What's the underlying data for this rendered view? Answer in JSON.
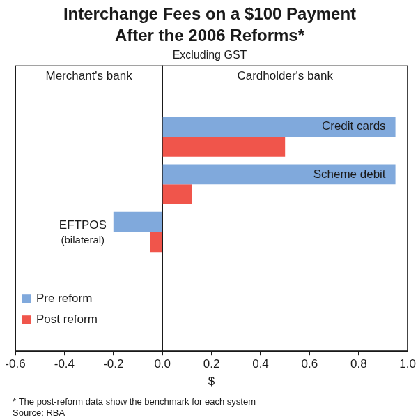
{
  "chart_data": {
    "type": "bar",
    "orientation": "horizontal",
    "title": [
      "Interchange Fees on a $100 Payment",
      "After the 2006 Reforms*"
    ],
    "subtitle": "Excluding GST",
    "annotations": [
      "Merchant's bank",
      "Cardholder's bank"
    ],
    "x_label": "$",
    "notes": [
      "* The post-reform data show the benchmark for each system",
      "Source: RBA"
    ],
    "categories": [
      null,
      "Credit cards",
      "Scheme debit",
      "EFTPOS (bilateral)",
      null,
      null
    ],
    "series": [
      {
        "name": "Pre reform",
        "color": "#80a9dc",
        "values": [
          null,
          0.95,
          0.95,
          -0.2,
          null,
          null
        ]
      },
      {
        "name": "Post reform",
        "color": "#f0554b",
        "values": [
          null,
          0.5,
          0.12,
          -0.05,
          null,
          null
        ]
      }
    ],
    "xlim": [
      -0.6,
      1.0
    ],
    "xticks": [
      -0.6,
      -0.4,
      -0.2,
      {
        "value": 0,
        "label": "0.0"
      },
      0.2,
      0.4,
      0.6,
      0.8,
      {
        "value": 1,
        "label": "1.0"
      }
    ],
    "grid": false,
    "legend": "lower left",
    "tick_labels": "x",
    "data_labels": false
  }
}
